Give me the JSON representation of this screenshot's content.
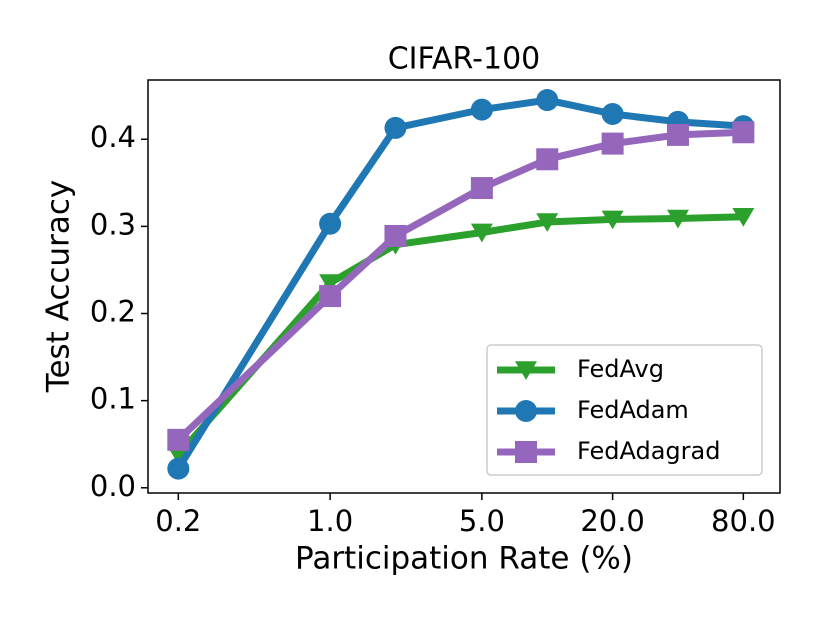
{
  "chart_data": {
    "type": "line",
    "title": "CIFAR-100",
    "xlabel": "Participation Rate (%)",
    "ylabel": "Test Accuracy",
    "xscale": "log",
    "x": [
      0.2,
      1,
      2,
      5,
      10,
      20,
      40,
      80
    ],
    "xlim": [
      0.145,
      118
    ],
    "xticks": [
      0.2,
      {
        "value": 1,
        "label": "1.0"
      },
      {
        "value": 5,
        "label": "5.0"
      },
      {
        "value": 20,
        "label": "20.0"
      },
      {
        "value": 80,
        "label": "80.0"
      }
    ],
    "ylim": [
      -0.006,
      0.468
    ],
    "yticks": [
      {
        "value": 0,
        "label": "0.0"
      },
      0.1,
      0.2,
      0.3,
      0.4
    ],
    "legend": "lower right",
    "series": [
      {
        "name": "FedAvg",
        "color": "#2ca02c",
        "marker": "triangle-down",
        "values": [
          0.038,
          0.235,
          0.279,
          0.293,
          0.305,
          0.308,
          0.309,
          0.311
        ]
      },
      {
        "name": "FedAdam",
        "color": "#1f77b4",
        "marker": "circle",
        "values": [
          0.022,
          0.303,
          0.413,
          0.434,
          0.445,
          0.429,
          0.42,
          0.415
        ]
      },
      {
        "name": "FedAdagrad",
        "color": "#9467bd",
        "marker": "square",
        "values": [
          0.055,
          0.22,
          0.289,
          0.344,
          0.377,
          0.395,
          0.405,
          0.408
        ]
      }
    ]
  }
}
